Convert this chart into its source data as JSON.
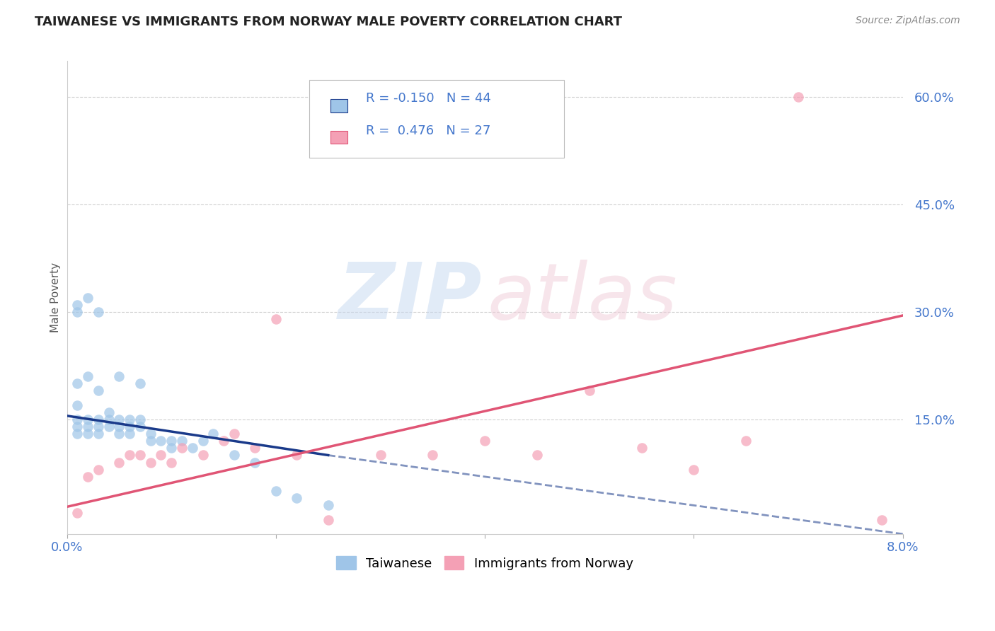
{
  "title": "TAIWANESE VS IMMIGRANTS FROM NORWAY MALE POVERTY CORRELATION CHART",
  "source": "Source: ZipAtlas.com",
  "ylabel": "Male Poverty",
  "xlim": [
    0.0,
    0.08
  ],
  "ylim": [
    -0.01,
    0.65
  ],
  "watermark_zip": "ZIP",
  "watermark_atlas": "atlas",
  "taiwanese_x": [
    0.001,
    0.001,
    0.001,
    0.001,
    0.001,
    0.002,
    0.002,
    0.002,
    0.002,
    0.003,
    0.003,
    0.003,
    0.003,
    0.004,
    0.004,
    0.004,
    0.005,
    0.005,
    0.005,
    0.006,
    0.006,
    0.006,
    0.007,
    0.007,
    0.008,
    0.008,
    0.009,
    0.01,
    0.01,
    0.011,
    0.012,
    0.013,
    0.014,
    0.016,
    0.018,
    0.02,
    0.022,
    0.025,
    0.001,
    0.001,
    0.002,
    0.003,
    0.005,
    0.007
  ],
  "taiwanese_y": [
    0.2,
    0.17,
    0.15,
    0.14,
    0.13,
    0.21,
    0.15,
    0.14,
    0.13,
    0.19,
    0.15,
    0.14,
    0.13,
    0.16,
    0.15,
    0.14,
    0.15,
    0.14,
    0.13,
    0.15,
    0.14,
    0.13,
    0.15,
    0.14,
    0.13,
    0.12,
    0.12,
    0.12,
    0.11,
    0.12,
    0.11,
    0.12,
    0.13,
    0.1,
    0.09,
    0.05,
    0.04,
    0.03,
    0.31,
    0.3,
    0.32,
    0.3,
    0.21,
    0.2
  ],
  "norway_x": [
    0.001,
    0.002,
    0.003,
    0.005,
    0.006,
    0.007,
    0.008,
    0.009,
    0.01,
    0.011,
    0.013,
    0.015,
    0.016,
    0.018,
    0.02,
    0.022,
    0.025,
    0.03,
    0.035,
    0.04,
    0.045,
    0.05,
    0.055,
    0.06,
    0.065,
    0.07,
    0.078
  ],
  "norway_y": [
    0.02,
    0.07,
    0.08,
    0.09,
    0.1,
    0.1,
    0.09,
    0.1,
    0.09,
    0.11,
    0.1,
    0.12,
    0.13,
    0.11,
    0.29,
    0.1,
    0.01,
    0.1,
    0.1,
    0.12,
    0.1,
    0.19,
    0.11,
    0.08,
    0.12,
    0.6,
    0.01
  ],
  "taiwanese_line_y0": 0.155,
  "taiwanese_line_y1": 0.1,
  "taiwanese_line_x0": 0.0,
  "taiwanese_line_x1": 0.025,
  "taiwanese_line_x_dash0": 0.025,
  "taiwanese_line_x_dash1": 0.08,
  "taiwanese_line_y_dash0": 0.1,
  "taiwanese_line_y_dash1": -0.01,
  "norway_line_y0": 0.028,
  "norway_line_y1": 0.295,
  "norway_line_x0": 0.0,
  "norway_line_x1": 0.08,
  "taiwanese_color": "#9fc5e8",
  "norway_color": "#f4a0b5",
  "taiwanese_line_color": "#1a3a8a",
  "norway_line_color": "#e05575",
  "background_color": "#ffffff",
  "grid_color": "#d0d0d0",
  "title_color": "#222222",
  "axis_label_color": "#4477cc",
  "legend_text_color": "#4477cc",
  "source_color": "#888888"
}
